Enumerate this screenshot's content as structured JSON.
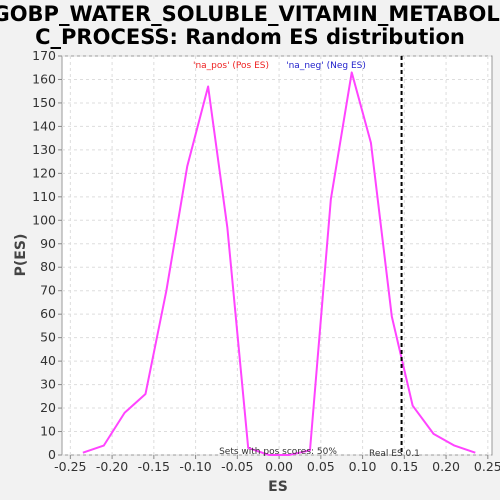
{
  "chart_data": {
    "type": "line",
    "title_line1": "GOBP_WATER_SOLUBLE_VITAMIN_METABOLI",
    "title_line2": "C_PROCESS: Random ES distribution",
    "xlabel": "ES",
    "ylabel": "P(ES)",
    "xlim": [
      -0.26,
      0.255
    ],
    "ylim": [
      0,
      170
    ],
    "x_ticks": [
      -0.25,
      -0.2,
      -0.15,
      -0.1,
      -0.05,
      0.0,
      0.05,
      0.1,
      0.15,
      0.2,
      0.25
    ],
    "x_tick_labels": [
      "-0.25",
      "-0.20",
      "-0.15",
      "-0.10",
      "-0.05",
      "0.00",
      "0.05",
      "0.10",
      "0.15",
      "0.20",
      "0.25"
    ],
    "y_ticks": [
      0,
      10,
      20,
      30,
      40,
      50,
      60,
      70,
      80,
      90,
      100,
      110,
      120,
      130,
      140,
      150,
      160,
      170
    ],
    "grid": true,
    "series": [
      {
        "name": "ES distribution",
        "color": "#ff44ff",
        "x": [
          -0.235,
          -0.21,
          -0.185,
          -0.16,
          -0.135,
          -0.11,
          -0.085,
          -0.062,
          -0.037,
          -0.012,
          0.012,
          0.037,
          0.062,
          0.087,
          0.11,
          0.135,
          0.16,
          0.185,
          0.21,
          0.235
        ],
        "y": [
          1,
          4,
          18,
          26,
          70,
          123,
          157,
          97,
          3,
          0,
          0,
          2,
          109,
          163,
          133,
          59,
          21,
          9,
          4,
          1
        ]
      }
    ],
    "legend": [
      {
        "label": "'na_pos' (Pos ES)",
        "color": "#ee2222"
      },
      {
        "label": "'na_neg' (Neg ES)",
        "color": "#2222cc"
      }
    ],
    "real_es": {
      "value": 0.1467,
      "label": "Real ES 0.1"
    },
    "annotation": "Sets with pos scores: 50%"
  }
}
